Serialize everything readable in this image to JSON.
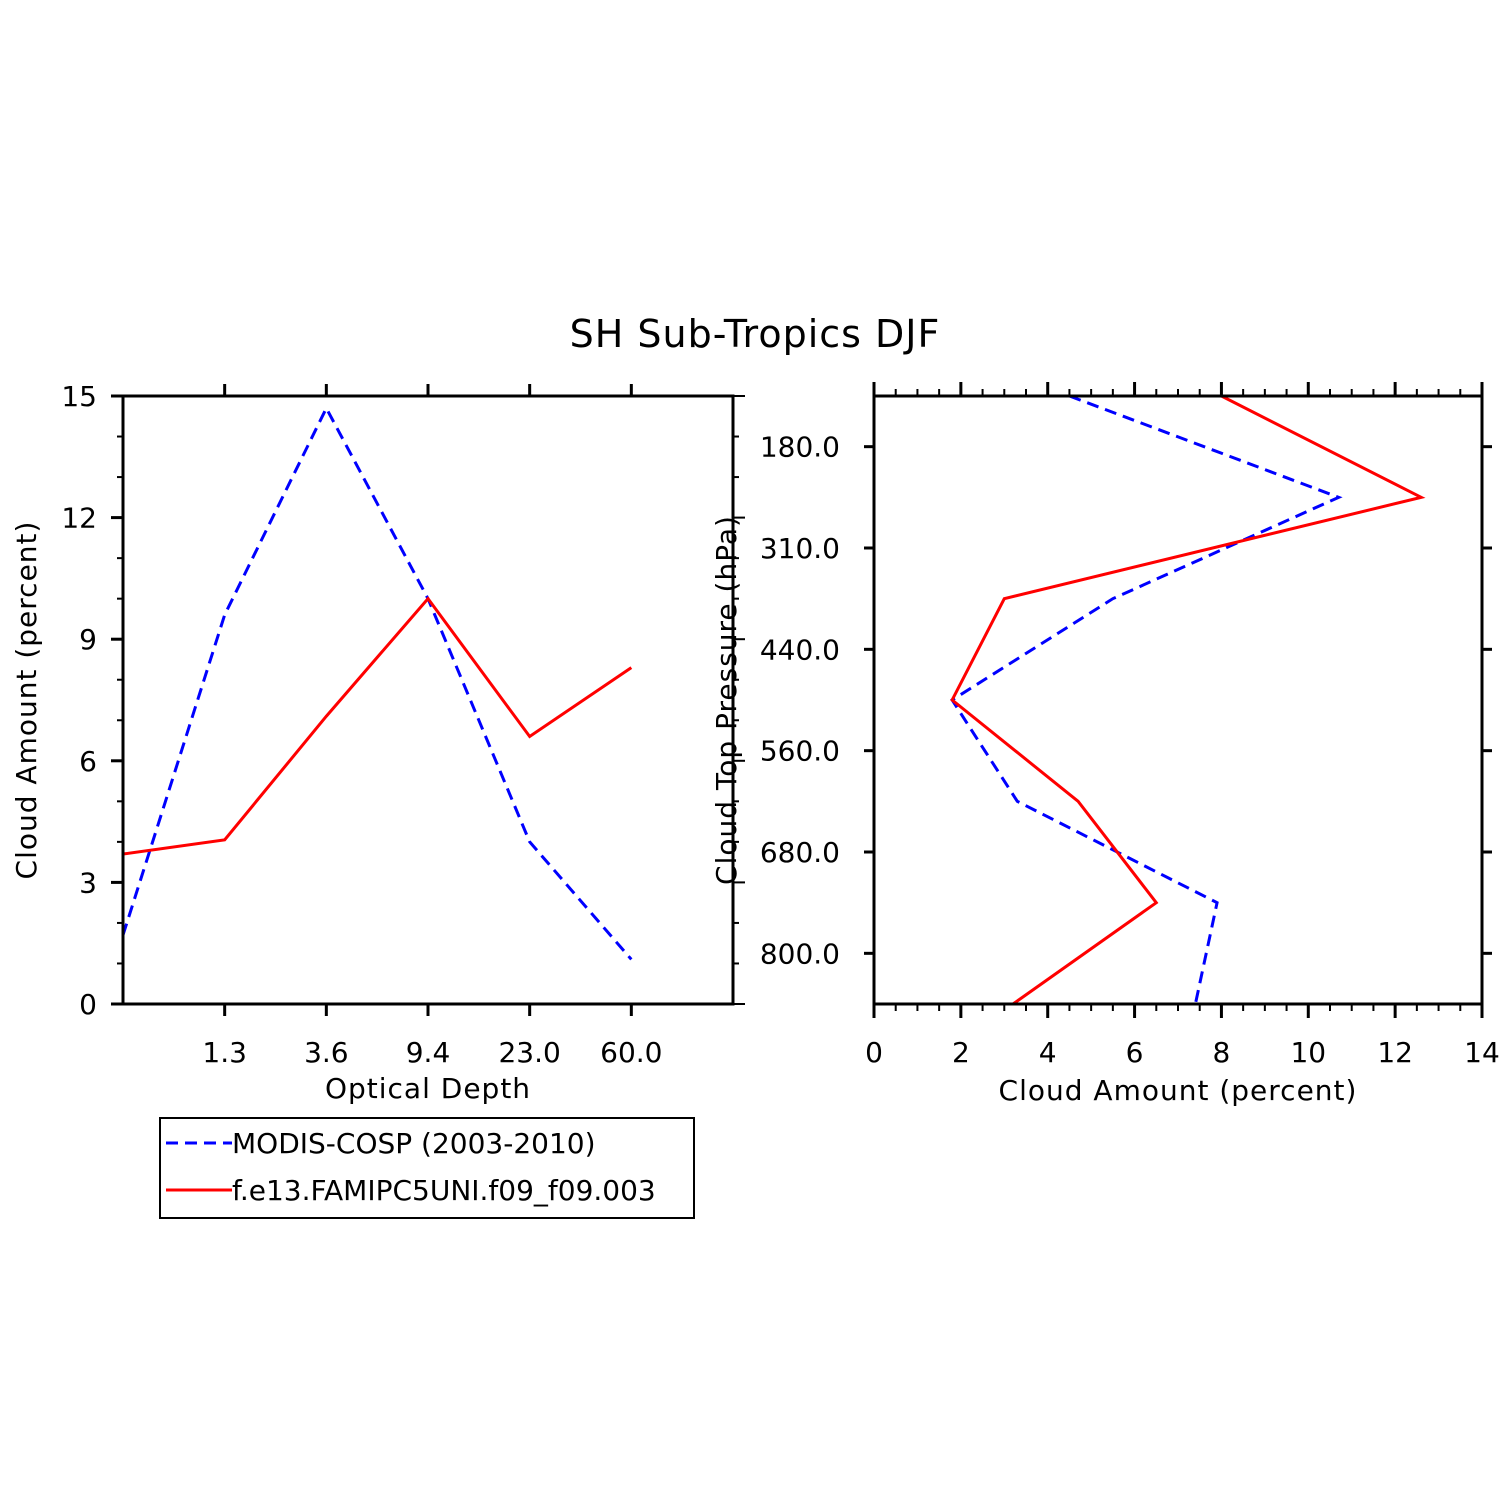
{
  "figure": {
    "title": "SH Sub-Tropics DJF",
    "legend": [
      {
        "label": "MODIS-COSP (2003-2010)",
        "color": "#0000ff",
        "style": "dashed"
      },
      {
        "label": "f.e13.FAMIPC5UNI.f09_f09.003",
        "color": "#ff0000",
        "style": "solid"
      }
    ]
  },
  "chart_data": [
    {
      "type": "line",
      "xlabel": "Optical Depth",
      "ylabel": "Cloud Amount (percent)",
      "x_tick_labels": [
        "1.3",
        "3.6",
        "9.4",
        "23.0",
        "60.0"
      ],
      "x_bins": [
        1,
        2,
        3,
        4,
        5,
        6
      ],
      "ylim": [
        0,
        15
      ],
      "y_ticks": [
        0,
        3,
        6,
        9,
        12,
        15
      ],
      "series": [
        {
          "name": "MODIS-COSP (2003-2010)",
          "color": "#0000ff",
          "dashed": true,
          "values": [
            1.7,
            9.6,
            14.7,
            10.0,
            4.0,
            1.1
          ]
        },
        {
          "name": "f.e13.FAMIPC5UNI.f09_f09.003",
          "color": "#ff0000",
          "dashed": false,
          "values": [
            3.7,
            4.05,
            7.1,
            10.0,
            6.6,
            8.3
          ]
        }
      ]
    },
    {
      "type": "line",
      "orientation": "horizontal",
      "xlabel": "Cloud Amount (percent)",
      "ylabel": "Cloud Top Pressure (hPa)",
      "xlim": [
        0,
        14
      ],
      "x_ticks": [
        0,
        2,
        4,
        6,
        8,
        10,
        12,
        14
      ],
      "y_tick_labels": [
        "180.0",
        "310.0",
        "440.0",
        "560.0",
        "680.0",
        "800.0"
      ],
      "y_levels": [
        1,
        2,
        3,
        4,
        5,
        6,
        7,
        8
      ],
      "series": [
        {
          "name": "MODIS-COSP (2003-2010)",
          "color": "#0000ff",
          "dashed": true,
          "values": [
            4.5,
            10.7,
            5.5,
            1.8,
            3.3,
            7.9,
            7.4
          ]
        },
        {
          "name": "f.e13.FAMIPC5UNI.f09_f09.003",
          "color": "#ff0000",
          "dashed": false,
          "values": [
            8.0,
            12.6,
            3.0,
            1.8,
            4.7,
            6.5,
            3.2
          ]
        }
      ]
    }
  ]
}
